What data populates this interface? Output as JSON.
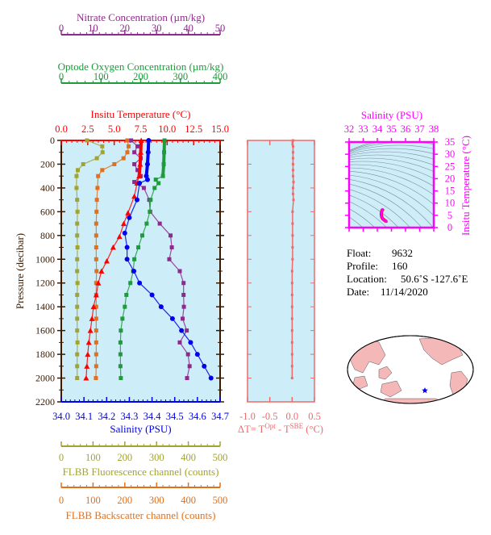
{
  "chart_data": [
    {
      "type": "line",
      "ylabel": "Pressure (decibar)",
      "ylim": [
        2200,
        0
      ],
      "yticks": [
        "0",
        "200",
        "400",
        "600",
        "800",
        "1000",
        "1200",
        "1400",
        "1600",
        "1800",
        "2000",
        "2200"
      ],
      "grid": false,
      "axes": [
        {
          "id": "nitrate",
          "title": "Nitrate Concentration (µm/kg)",
          "range": [
            0,
            50
          ],
          "ticks": [
            "0",
            "10",
            "20",
            "30",
            "40",
            "50"
          ],
          "position": "top",
          "color": "#8e2a8e"
        },
        {
          "id": "oxygen",
          "title": "Optode Oxygen Concentration (µm/kg)",
          "range": [
            0,
            400
          ],
          "ticks": [
            "0",
            "100",
            "200",
            "300",
            "400"
          ],
          "position": "top",
          "color": "#1f9a3c"
        },
        {
          "id": "temp",
          "title": "Insitu Temperature (°C)",
          "range": [
            0,
            15
          ],
          "ticks": [
            "0.0",
            "2.5",
            "5.0",
            "7.5",
            "10.0",
            "12.5",
            "15.0"
          ],
          "position": "top",
          "color": "#ff0000"
        },
        {
          "id": "sal",
          "title": "Salinity (PSU)",
          "range": [
            34.0,
            34.7
          ],
          "ticks": [
            "34.0",
            "34.1",
            "34.2",
            "34.3",
            "34.4",
            "34.5",
            "34.6",
            "34.7"
          ],
          "position": "bottom",
          "color": "#0000ee"
        },
        {
          "id": "fluor",
          "title": "FLBB Fluorescence channel (counts)",
          "range": [
            0,
            500
          ],
          "ticks": [
            "0",
            "100",
            "200",
            "300",
            "400",
            "500"
          ],
          "position": "bottom",
          "color": "#a3a332"
        },
        {
          "id": "bbp",
          "title": "FLBB Backscatter channel (counts)",
          "range": [
            0,
            500
          ],
          "ticks": [
            "0",
            "100",
            "200",
            "300",
            "400",
            "500"
          ],
          "position": "bottom",
          "color": "#e0701e"
        }
      ],
      "series": [
        {
          "axis": "fluor",
          "marker": "square",
          "color": "#a3a332",
          "pressure": [
            0,
            50,
            100,
            150,
            200,
            250,
            300,
            400,
            500,
            600,
            700,
            800,
            900,
            1000,
            1100,
            1200,
            1300,
            1400,
            1500,
            1600,
            1700,
            1800,
            1900,
            2000
          ],
          "values": [
            81,
            129,
            130,
            112,
            69,
            52,
            48,
            48,
            50,
            51,
            50,
            50,
            51,
            50,
            50,
            51,
            50,
            50,
            50,
            50,
            51,
            50,
            50,
            50
          ]
        },
        {
          "axis": "bbp",
          "marker": "square",
          "color": "#e0701e",
          "pressure": [
            0,
            50,
            100,
            150,
            200,
            250,
            300,
            400,
            500,
            600,
            700,
            800,
            900,
            1000,
            1100,
            1200,
            1300,
            1400,
            1500,
            1600,
            1700,
            1800,
            1900,
            2000
          ],
          "values": [
            208,
            212,
            208,
            196,
            167,
            129,
            116,
            114,
            112,
            111,
            110,
            110,
            110,
            110,
            111,
            110,
            110,
            110,
            110,
            110,
            110,
            110,
            110,
            109
          ]
        },
        {
          "axis": "nitrate",
          "marker": "square",
          "color": "#8e2a8e",
          "pressure": [
            0,
            50,
            100,
            150,
            200,
            250,
            300,
            350,
            400,
            500,
            600,
            700,
            800,
            900,
            1000,
            1100,
            1200,
            1300,
            1400,
            1500,
            1600,
            1700,
            1800,
            1900,
            2000
          ],
          "values": [
            22,
            24,
            23,
            25,
            23,
            24,
            25,
            23,
            26,
            27.7,
            28,
            31,
            34.4,
            34.8,
            34,
            37.3,
            38.5,
            38.5,
            38.6,
            38.2,
            39.5,
            37.3,
            39.9,
            40.4,
            39.6
          ]
        },
        {
          "axis": "oxygen",
          "marker": "square",
          "color": "#1f9a3c",
          "pressure": [
            0,
            100,
            200,
            300,
            330,
            360,
            400,
            500,
            600,
            700,
            800,
            900,
            1000,
            1100,
            1200,
            1300,
            1400,
            1500,
            1600,
            1700,
            1800,
            1900,
            2000
          ],
          "values": [
            260,
            259,
            258,
            256,
            238,
            245,
            235,
            225,
            223,
            215,
            204,
            194,
            184,
            181,
            174,
            164,
            160,
            154,
            150,
            149,
            149,
            149,
            150
          ]
        },
        {
          "axis": "temp",
          "marker": "triangle",
          "color": "#ff0000",
          "pressure": [
            0,
            100,
            200,
            300,
            360,
            470,
            610,
            700,
            810,
            900,
            1015,
            1100,
            1200,
            1300,
            1400,
            1500,
            1600,
            1700,
            1800,
            1900,
            2000
          ],
          "values": [
            7.55,
            7.5,
            7.45,
            7.35,
            7.16,
            6.9,
            6.3,
            5.9,
            5.5,
            4.9,
            4.3,
            3.8,
            3.5,
            3.3,
            3.05,
            2.9,
            2.75,
            2.6,
            2.5,
            2.42,
            2.35
          ]
        },
        {
          "axis": "sal",
          "marker": "circle",
          "color": "#0000ee",
          "pressure": [
            0,
            100,
            200,
            300,
            330,
            360,
            500,
            650,
            780,
            900,
            1000,
            1100,
            1200,
            1300,
            1400,
            1500,
            1600,
            1700,
            1800,
            1900,
            2000
          ],
          "values": [
            34.385,
            34.383,
            34.38,
            34.375,
            34.38,
            34.345,
            34.334,
            34.3,
            34.28,
            34.29,
            34.29,
            34.32,
            34.345,
            34.4,
            34.44,
            34.49,
            34.53,
            34.57,
            34.6,
            34.63,
            34.66
          ]
        }
      ]
    },
    {
      "type": "line",
      "xlabel_prefix": "ΔT= T",
      "xlabel_sup1": "Opt",
      "xlabel_mid": " - T",
      "xlabel_sup2": "SBE",
      "xlabel_suffix": " (°C)",
      "xlim": [
        -1.0,
        0.5
      ],
      "xticks": [
        "-1.0",
        "-0.5",
        "0.0",
        "0.5"
      ],
      "ylim": [
        2200,
        0
      ],
      "color": "#f06a6a",
      "pressure": [
        0,
        50,
        100,
        150,
        200,
        250,
        300,
        350,
        400,
        450,
        500,
        600,
        700,
        800,
        900,
        1000,
        1100,
        1200,
        1300,
        1400,
        1500,
        1600,
        1700,
        1800,
        1900,
        2000
      ],
      "values": [
        0.02,
        0.02,
        0.02,
        0.02,
        0.02,
        0.02,
        0.02,
        0.03,
        0.02,
        0.02,
        0.03,
        0.01,
        0.01,
        0.01,
        0.01,
        0.01,
        0.0,
        0.0,
        0.0,
        0.0,
        0.0,
        0.0,
        0.0,
        0.0,
        0.0,
        0.0
      ]
    },
    {
      "type": "scatter",
      "xlabel": "Salinity (PSU)",
      "ylabel": "Insitu Temperature (°C)",
      "xlim": [
        32,
        38
      ],
      "ylim": [
        0,
        35
      ],
      "xticks": [
        "32",
        "33",
        "34",
        "35",
        "36",
        "37",
        "38"
      ],
      "yticks": [
        "0",
        "5",
        "10",
        "15",
        "20",
        "25",
        "30",
        "35"
      ],
      "color": "#ff00ff",
      "salinity": [
        34.38,
        34.38,
        34.34,
        34.33,
        34.3,
        34.28,
        34.29,
        34.32,
        34.35,
        34.4,
        34.44,
        34.49,
        34.53,
        34.57,
        34.6,
        34.63,
        34.66
      ],
      "temperature": [
        7.55,
        7.4,
        7.16,
        6.9,
        6.3,
        5.5,
        4.9,
        4.3,
        3.8,
        3.5,
        3.3,
        3.05,
        2.9,
        2.75,
        2.6,
        2.5,
        2.35
      ]
    }
  ],
  "info": {
    "float_label": "Float:",
    "float": "9632",
    "profile_label": "Profile:",
    "profile": "160",
    "location_label": "Location:",
    "location": "50.6˚S  -127.6˚E",
    "date_label": "Date:",
    "date": "11/14/2020"
  },
  "map": {
    "marker": "star-icon",
    "marker_color": "#0000ff",
    "land_color": "#f4b8b8",
    "ocean_color": "#ffffff"
  }
}
